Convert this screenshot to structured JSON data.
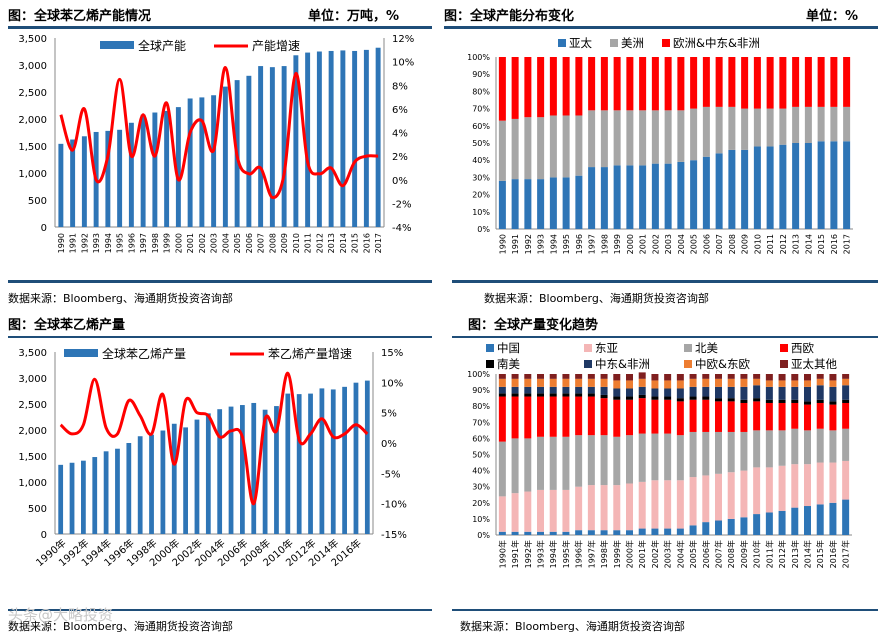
{
  "panels": [
    {
      "title": "图：全球苯乙烯产能情况",
      "unit": "单位：万吨，%",
      "source": "数据来源：Bloomberg、海通期货投资咨询部"
    },
    {
      "title": "图：全球产能分布变化",
      "unit": "单位：%",
      "source": "数据来源：Bloomberg、海通期货投资咨询部"
    },
    {
      "title": "图：全球苯乙烯产量",
      "unit": "",
      "source": "数据来源：Bloomberg、海通期货投资咨询部"
    },
    {
      "title": "图：全球产量变化趋势",
      "unit": "",
      "source": "数据来源：Bloomberg、海通期货投资咨询部"
    }
  ],
  "watermark": "头条@大略投资",
  "colors": {
    "blue": "#2e75b6",
    "red": "#ff0000",
    "gray": "#a6a6a6",
    "pink": "#f4b6b6",
    "navy": "#1f3864",
    "orange": "#ed7d31",
    "maroon": "#7f1f1f",
    "black": "#000000",
    "rule": "#1f4e79"
  },
  "chart_data": [
    {
      "id": "capacity",
      "type": "bar+line",
      "categories": [
        "1990",
        "1991",
        "1992",
        "1993",
        "1994",
        "1995",
        "1996",
        "1997",
        "1998",
        "1999",
        "2000",
        "2001",
        "2002",
        "2003",
        "2004",
        "2005",
        "2006",
        "2007",
        "2008",
        "2009",
        "2010",
        "2011",
        "2012",
        "2013",
        "2014",
        "2015",
        "2016",
        "2017"
      ],
      "series": [
        {
          "name": "全球产能",
          "axis": "left",
          "values": [
            1540,
            1620,
            1680,
            1760,
            1780,
            1800,
            1930,
            2080,
            2120,
            2150,
            2220,
            2380,
            2400,
            2440,
            2600,
            2720,
            2800,
            2980,
            2960,
            2980,
            3180,
            3230,
            3250,
            3260,
            3270,
            3260,
            3280,
            3320
          ]
        },
        {
          "name": "产能增速",
          "axis": "right",
          "values": [
            5.5,
            2.5,
            6.0,
            0.0,
            2.0,
            8.5,
            2.0,
            5.5,
            2.0,
            6.5,
            0.0,
            4.0,
            5.0,
            2.5,
            9.5,
            2.0,
            0.5,
            1.0,
            -1.5,
            0.5,
            9.0,
            1.5,
            0.5,
            1.0,
            -0.5,
            1.5,
            2.0,
            2.0
          ]
        }
      ],
      "left_axis": {
        "min": 0,
        "max": 3500,
        "ticks": [
          "0",
          "500",
          "1,000",
          "1,500",
          "2,000",
          "2,500",
          "3,000",
          "3,500"
        ]
      },
      "right_axis": {
        "min": -4,
        "max": 12,
        "ticks": [
          "-4%",
          "-2%",
          "0%",
          "2%",
          "4%",
          "6%",
          "8%",
          "10%",
          "12%"
        ]
      }
    },
    {
      "id": "capacity_share",
      "type": "stacked-bar",
      "categories": [
        "1990",
        "1991",
        "1992",
        "1993",
        "1994",
        "1995",
        "1996",
        "1997",
        "1998",
        "1999",
        "2000",
        "2001",
        "2002",
        "2003",
        "2004",
        "2005",
        "2006",
        "2007",
        "2008",
        "2009",
        "2010",
        "2011",
        "2012",
        "2013",
        "2014",
        "2015",
        "2016",
        "2017"
      ],
      "series": [
        {
          "name": "亚太",
          "values": [
            28,
            29,
            29,
            29,
            30,
            30,
            31,
            36,
            36,
            37,
            37,
            37,
            38,
            38,
            39,
            40,
            42,
            44,
            46,
            46,
            48,
            48,
            49,
            50,
            50,
            51,
            51,
            51
          ]
        },
        {
          "name": "美洲",
          "values": [
            35,
            35,
            36,
            36,
            36,
            36,
            35,
            33,
            33,
            32,
            32,
            32,
            31,
            31,
            30,
            30,
            29,
            27,
            25,
            24,
            22,
            22,
            21,
            21,
            21,
            20,
            20,
            20
          ]
        },
        {
          "name": "欧洲&中东&非洲",
          "values": [
            37,
            36,
            35,
            35,
            34,
            34,
            34,
            31,
            31,
            31,
            31,
            31,
            31,
            31,
            31,
            30,
            29,
            29,
            29,
            30,
            30,
            30,
            30,
            29,
            29,
            29,
            29,
            29
          ]
        }
      ],
      "y_axis": {
        "min": 0,
        "max": 100,
        "ticks": [
          "0%",
          "10%",
          "20%",
          "30%",
          "40%",
          "50%",
          "60%",
          "70%",
          "80%",
          "90%",
          "100%"
        ]
      }
    },
    {
      "id": "production",
      "type": "bar+line",
      "categories": [
        "1990年",
        "1991年",
        "1992年",
        "1993年",
        "1994年",
        "1995年",
        "1996年",
        "1997年",
        "1998年",
        "1999年",
        "2000年",
        "2001年",
        "2002年",
        "2003年",
        "2004年",
        "2005年",
        "2006年",
        "2007年",
        "2008年",
        "2009年",
        "2010年",
        "2011年",
        "2012年",
        "2013年",
        "2014年",
        "2015年",
        "2016年",
        "2017年"
      ],
      "tick_labels": [
        "1990年",
        "1992年",
        "1994年",
        "1996年",
        "1998年",
        "2000年",
        "2002年",
        "2004年",
        "2006年",
        "2008年",
        "2010年",
        "2012年",
        "2014年",
        "2016年"
      ],
      "series": [
        {
          "name": "全球苯乙烯产量",
          "axis": "left",
          "values": [
            1330,
            1370,
            1410,
            1480,
            1590,
            1640,
            1750,
            1880,
            1910,
            1990,
            2120,
            2050,
            2200,
            2320,
            2400,
            2450,
            2480,
            2520,
            2390,
            2460,
            2700,
            2690,
            2700,
            2800,
            2780,
            2830,
            2910,
            2950
          ]
        },
        {
          "name": "苯乙烯产量增速",
          "axis": "right",
          "values": [
            3.0,
            1.5,
            3.0,
            10.5,
            2.5,
            1.5,
            7.0,
            4.5,
            1.5,
            8.0,
            -3.5,
            7.0,
            5.0,
            4.5,
            1.0,
            2.0,
            1.0,
            -10.0,
            4.0,
            2.0,
            11.5,
            0.5,
            1.5,
            4.0,
            1.0,
            1.5,
            3.0,
            1.5
          ]
        }
      ],
      "left_axis": {
        "min": 0,
        "max": 3500,
        "ticks": [
          "0",
          "500",
          "1,000",
          "1,500",
          "2,000",
          "2,500",
          "3,000",
          "3,500"
        ]
      },
      "right_axis": {
        "min": -15,
        "max": 15,
        "ticks": [
          "-15%",
          "-10%",
          "-5%",
          "0%",
          "5%",
          "10%",
          "15%"
        ]
      }
    },
    {
      "id": "production_share",
      "type": "stacked-bar",
      "categories": [
        "1990年",
        "1991年",
        "1992年",
        "1993年",
        "1994年",
        "1995年",
        "1996年",
        "1997年",
        "1998年",
        "1999年",
        "2000年",
        "2001年",
        "2002年",
        "2003年",
        "2004年",
        "2005年",
        "2006年",
        "2007年",
        "2008年",
        "2009年",
        "2010年",
        "2011年",
        "2012年",
        "2013年",
        "2014年",
        "2015年",
        "2016年",
        "2017年"
      ],
      "series": [
        {
          "name": "中国",
          "values": [
            2,
            2,
            2,
            2,
            2,
            2,
            3,
            3,
            3,
            3,
            3,
            4,
            4,
            4,
            4,
            6,
            8,
            9,
            10,
            11,
            13,
            14,
            15,
            17,
            18,
            19,
            20,
            22
          ]
        },
        {
          "name": "东亚",
          "values": [
            22,
            24,
            25,
            26,
            26,
            26,
            27,
            28,
            28,
            28,
            29,
            29,
            30,
            30,
            30,
            30,
            29,
            29,
            29,
            29,
            29,
            28,
            28,
            27,
            26,
            26,
            25,
            24
          ]
        },
        {
          "name": "北美",
          "values": [
            34,
            34,
            33,
            33,
            33,
            33,
            32,
            31,
            31,
            30,
            30,
            30,
            29,
            29,
            28,
            28,
            27,
            26,
            25,
            24,
            23,
            23,
            22,
            22,
            21,
            21,
            20,
            20
          ]
        },
        {
          "name": "西欧",
          "values": [
            28,
            26,
            26,
            25,
            25,
            25,
            24,
            24,
            23,
            23,
            22,
            22,
            21,
            21,
            21,
            20,
            20,
            19,
            19,
            18,
            18,
            17,
            17,
            16,
            16,
            16,
            16,
            16
          ]
        },
        {
          "name": "南美",
          "values": [
            2,
            2,
            2,
            2,
            2,
            2,
            2,
            2,
            2,
            2,
            2,
            2,
            2,
            2,
            2,
            2,
            2,
            2,
            2,
            2,
            2,
            2,
            2,
            2,
            2,
            2,
            2,
            2
          ]
        },
        {
          "name": "中东&非洲",
          "values": [
            4,
            4,
            4,
            4,
            4,
            4,
            4,
            4,
            5,
            5,
            5,
            5,
            5,
            5,
            6,
            6,
            6,
            7,
            7,
            8,
            8,
            8,
            8,
            8,
            9,
            9,
            9,
            9
          ]
        },
        {
          "name": "中欧&东欧",
          "values": [
            5,
            5,
            5,
            5,
            5,
            5,
            5,
            5,
            5,
            5,
            5,
            5,
            5,
            5,
            5,
            5,
            5,
            5,
            5,
            5,
            4,
            4,
            4,
            4,
            4,
            4,
            4,
            4
          ]
        },
        {
          "name": "亚太其他",
          "values": [
            3,
            3,
            3,
            3,
            3,
            3,
            3,
            3,
            3,
            4,
            4,
            4,
            4,
            4,
            4,
            3,
            3,
            3,
            3,
            3,
            3,
            4,
            4,
            4,
            4,
            3,
            4,
            3
          ]
        }
      ],
      "y_axis": {
        "min": 0,
        "max": 100,
        "ticks": [
          "0%",
          "10%",
          "20%",
          "30%",
          "40%",
          "50%",
          "60%",
          "70%",
          "80%",
          "90%",
          "100%"
        ]
      }
    }
  ]
}
